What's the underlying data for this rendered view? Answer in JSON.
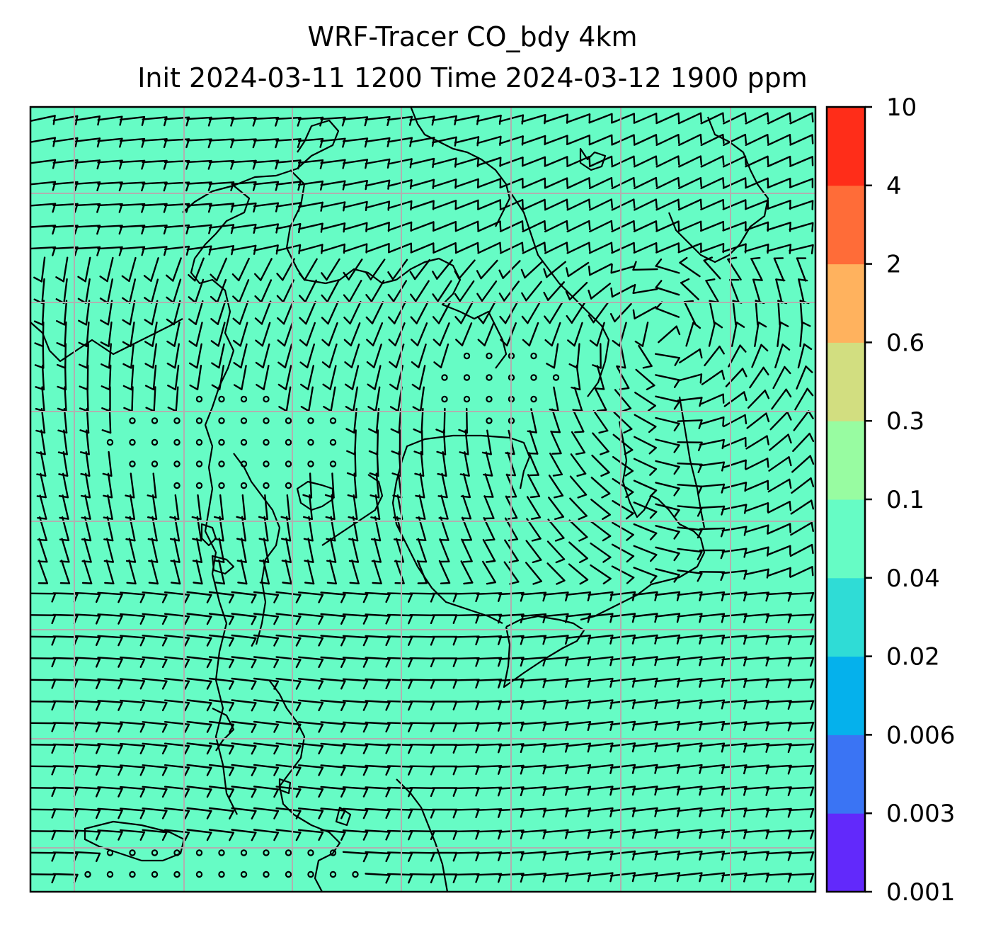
{
  "title": {
    "line1": "WRF-Tracer CO_bdy 4km",
    "line2": "Init 2024-03-11 1200 Time 2024-03-12 1900 ppm"
  },
  "chart_data": {
    "type": "heatmap",
    "title": "WRF-Tracer CO_bdy 4km\nInit 2024-03-11 1200 Time 2024-03-12 1900 ppm",
    "xlabel": "",
    "ylabel": "",
    "grid": true,
    "field_fill_color": "#66fcc5",
    "field_value_range": [
      0.04,
      0.1
    ],
    "overlay": "wind barbs with coastline/border outlines",
    "colorbar": {
      "position": "right",
      "levels": [
        "0.001",
        "0.003",
        "0.006",
        "0.02",
        "0.04",
        "0.1",
        "0.3",
        "0.6",
        "2",
        "4",
        "10"
      ],
      "colors": [
        "#6229fb",
        "#3a74f4",
        "#05b1ec",
        "#2fdcd6",
        "#66fcc5",
        "#98fca1",
        "#d2de80",
        "#ffb25e",
        "#ff6c38",
        "#ff2d19"
      ]
    }
  },
  "colors": {
    "grid": "#b0b0b0",
    "barb": "#000000",
    "coast": "#000000"
  }
}
